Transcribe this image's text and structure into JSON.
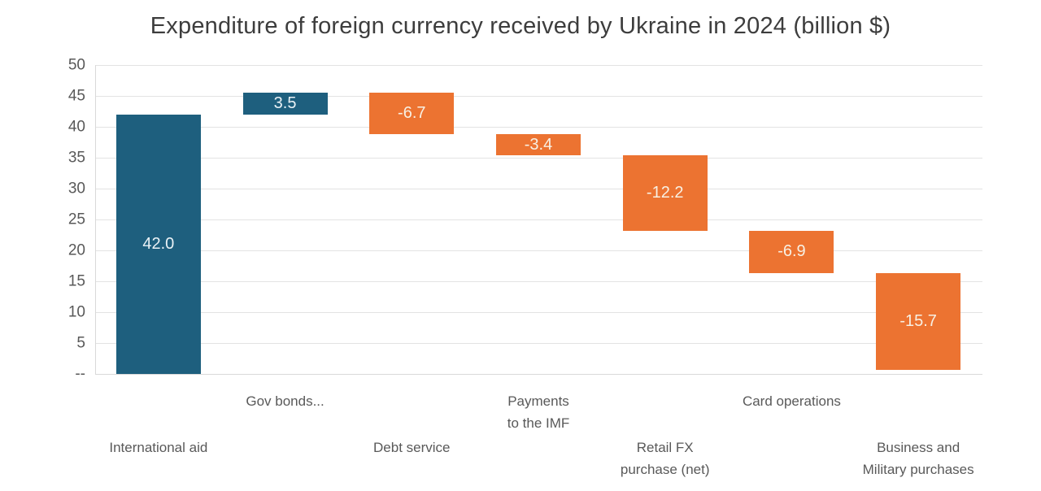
{
  "page": {
    "background": "#FFFFFF"
  },
  "chart_data": {
    "type": "bar",
    "subtype": "waterfall",
    "title": "Expenditure of foreign currency received by Ukraine in 2024 (billion $)",
    "categories": [
      "International aid",
      "Gov bonds...",
      "Debt service",
      "Payments to the IMF",
      "Retail FX purchase (net)",
      "Card operations",
      "Business and Military purchases"
    ],
    "category_lines": [
      [
        "International aid"
      ],
      [
        "Gov bonds..."
      ],
      [
        "Debt service"
      ],
      [
        "Payments",
        "to the IMF"
      ],
      [
        "Retail FX",
        "purchase (net)"
      ],
      [
        "Card operations"
      ],
      [
        "Business and",
        "Military purchases"
      ]
    ],
    "values": [
      42.0,
      3.5,
      -6.7,
      -3.4,
      -12.2,
      -6.9,
      -15.7
    ],
    "bar_labels": [
      "42.0",
      "3.5",
      "-6.7",
      "-3.4",
      "-12.2",
      "-6.9",
      "-15.7"
    ],
    "running_total_start": 0,
    "ylim": [
      0,
      50
    ],
    "yticks": [
      50,
      45,
      40,
      35,
      30,
      25,
      20,
      15,
      10,
      5
    ],
    "ytick_labels": [
      "50",
      "45",
      "40",
      "35",
      "30",
      "25",
      "20",
      "15",
      "10",
      "5"
    ],
    "zero_tick_label": "--",
    "grid": "horizontal",
    "legend": "none",
    "colors": {
      "increase": "#1E5F7E",
      "decrease": "#EC7331",
      "grid_line": "#E3E3E3",
      "axis_line": "#D9D9D9",
      "title_text": "#3D3D3D",
      "tick_text": "#595959",
      "bar_label_on_increase": "#EAF2F6",
      "bar_label_on_decrease": "#F8F0E3"
    }
  }
}
